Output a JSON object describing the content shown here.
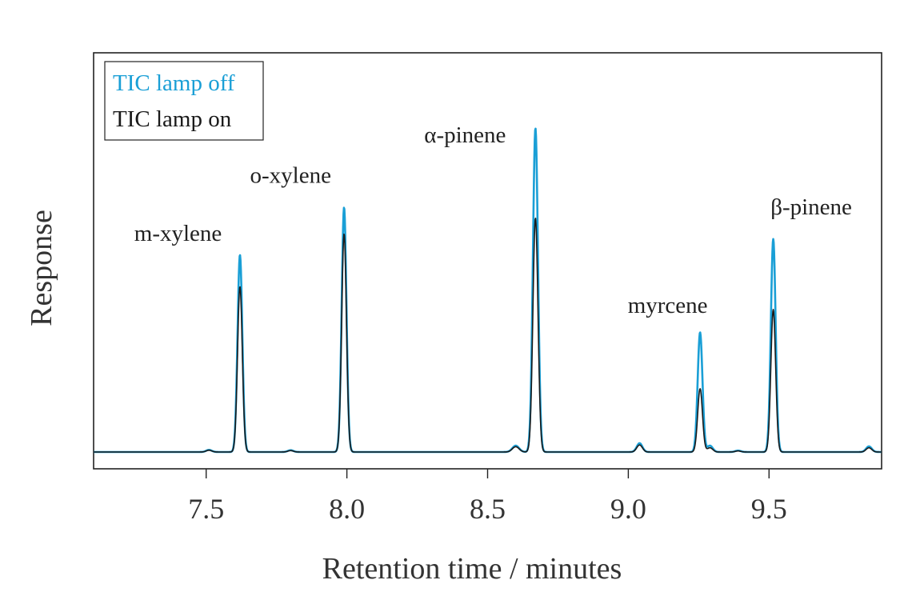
{
  "chart_data": {
    "type": "line",
    "title": "",
    "xlabel": "Retention time / minutes",
    "ylabel": "Response",
    "xlim": [
      7.1,
      9.9
    ],
    "ylim": [
      0,
      1.0
    ],
    "xticks": [
      7.5,
      8.0,
      8.5,
      9.0,
      9.5
    ],
    "xtick_labels": [
      "7.5",
      "8.0",
      "8.5",
      "9.0",
      "9.5"
    ],
    "grid": false,
    "legend_placement": "top-left",
    "series": [
      {
        "name": "TIC lamp off",
        "color": "#1a9fd6",
        "peaks": [
          {
            "x": 7.51,
            "y": 0.006,
            "w": 0.01
          },
          {
            "x": 7.62,
            "y": 0.56,
            "w": 0.0085
          },
          {
            "x": 7.8,
            "y": 0.005,
            "w": 0.01
          },
          {
            "x": 7.99,
            "y": 0.695,
            "w": 0.0085
          },
          {
            "x": 8.6,
            "y": 0.018,
            "w": 0.012
          },
          {
            "x": 8.67,
            "y": 0.92,
            "w": 0.009
          },
          {
            "x": 9.04,
            "y": 0.025,
            "w": 0.01
          },
          {
            "x": 9.255,
            "y": 0.34,
            "w": 0.0085
          },
          {
            "x": 9.29,
            "y": 0.018,
            "w": 0.01
          },
          {
            "x": 9.39,
            "y": 0.004,
            "w": 0.01
          },
          {
            "x": 9.515,
            "y": 0.605,
            "w": 0.0085
          },
          {
            "x": 9.855,
            "y": 0.016,
            "w": 0.01
          }
        ]
      },
      {
        "name": "TIC lamp on",
        "color": "#1a1a1a",
        "peaks": [
          {
            "x": 7.51,
            "y": 0.005,
            "w": 0.01
          },
          {
            "x": 7.62,
            "y": 0.47,
            "w": 0.0085
          },
          {
            "x": 7.8,
            "y": 0.004,
            "w": 0.01
          },
          {
            "x": 7.99,
            "y": 0.62,
            "w": 0.0085
          },
          {
            "x": 8.6,
            "y": 0.015,
            "w": 0.012
          },
          {
            "x": 8.67,
            "y": 0.665,
            "w": 0.009
          },
          {
            "x": 9.04,
            "y": 0.02,
            "w": 0.01
          },
          {
            "x": 9.255,
            "y": 0.18,
            "w": 0.0085
          },
          {
            "x": 9.29,
            "y": 0.012,
            "w": 0.01
          },
          {
            "x": 9.39,
            "y": 0.003,
            "w": 0.01
          },
          {
            "x": 9.515,
            "y": 0.405,
            "w": 0.0085
          },
          {
            "x": 9.855,
            "y": 0.012,
            "w": 0.01
          }
        ]
      }
    ],
    "annotations": [
      {
        "text": "m-xylene",
        "x": 7.4,
        "y": 0.6
      },
      {
        "text": "o-xylene",
        "x": 7.8,
        "y": 0.765
      },
      {
        "text": "α-pinene",
        "x": 8.42,
        "y": 0.88
      },
      {
        "text": "myrcene",
        "x": 9.14,
        "y": 0.395
      },
      {
        "text": "β-pinene",
        "x": 9.65,
        "y": 0.675
      }
    ]
  }
}
